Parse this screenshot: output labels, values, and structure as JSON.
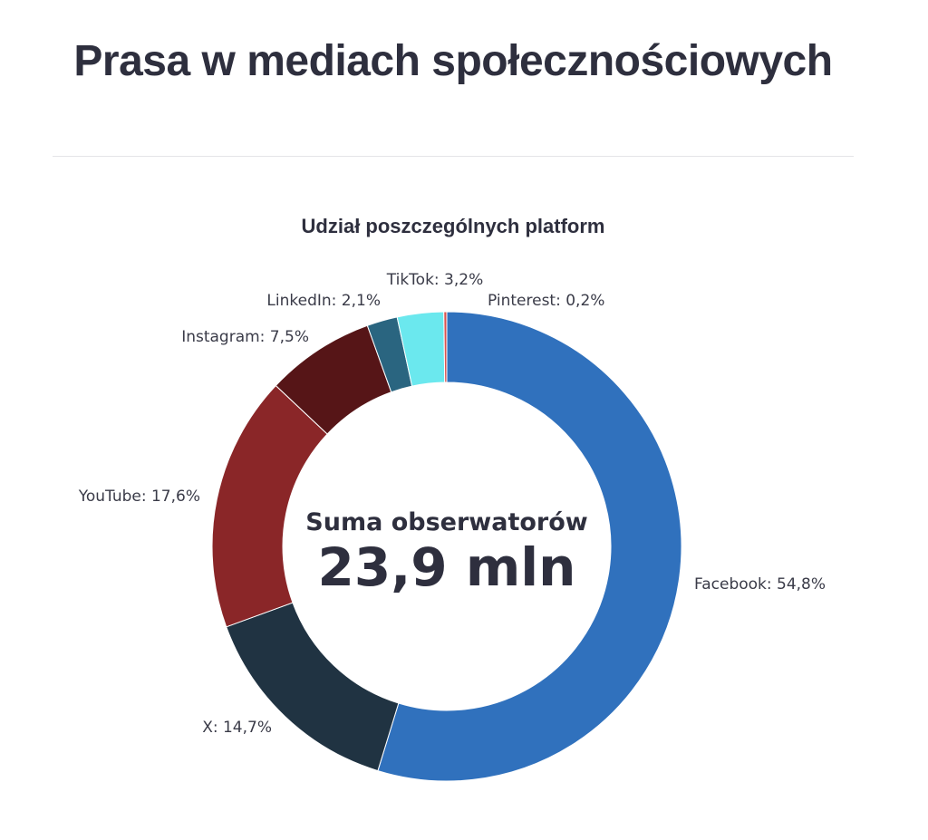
{
  "page": {
    "title": "Prasa w mediach społecznościowych"
  },
  "chart_data": {
    "type": "pie",
    "title": "Udział poszczególnych platform",
    "center_caption": "Suma obserwatorów",
    "center_total": "23,9 mln",
    "slices": [
      {
        "name": "Facebook",
        "value": 54.8,
        "label": "Facebook: 54,8%",
        "color": "#3071bd"
      },
      {
        "name": "X",
        "value": 14.7,
        "label": "X: 14,7%",
        "color": "#203342"
      },
      {
        "name": "YouTube",
        "value": 17.6,
        "label": "YouTube: 17,6%",
        "color": "#8a2628"
      },
      {
        "name": "Instagram",
        "value": 7.5,
        "label": "Instagram: 7,5%",
        "color": "#561517"
      },
      {
        "name": "LinkedIn",
        "value": 2.1,
        "label": "LinkedIn: 2,1%",
        "color": "#2a6580"
      },
      {
        "name": "TikTok",
        "value": 3.2,
        "label": "TikTok: 3,2%",
        "color": "#6be8ee"
      },
      {
        "name": "Pinterest",
        "value": 0.2,
        "label": "Pinterest: 0,2%",
        "color": "#d9534f"
      }
    ]
  }
}
